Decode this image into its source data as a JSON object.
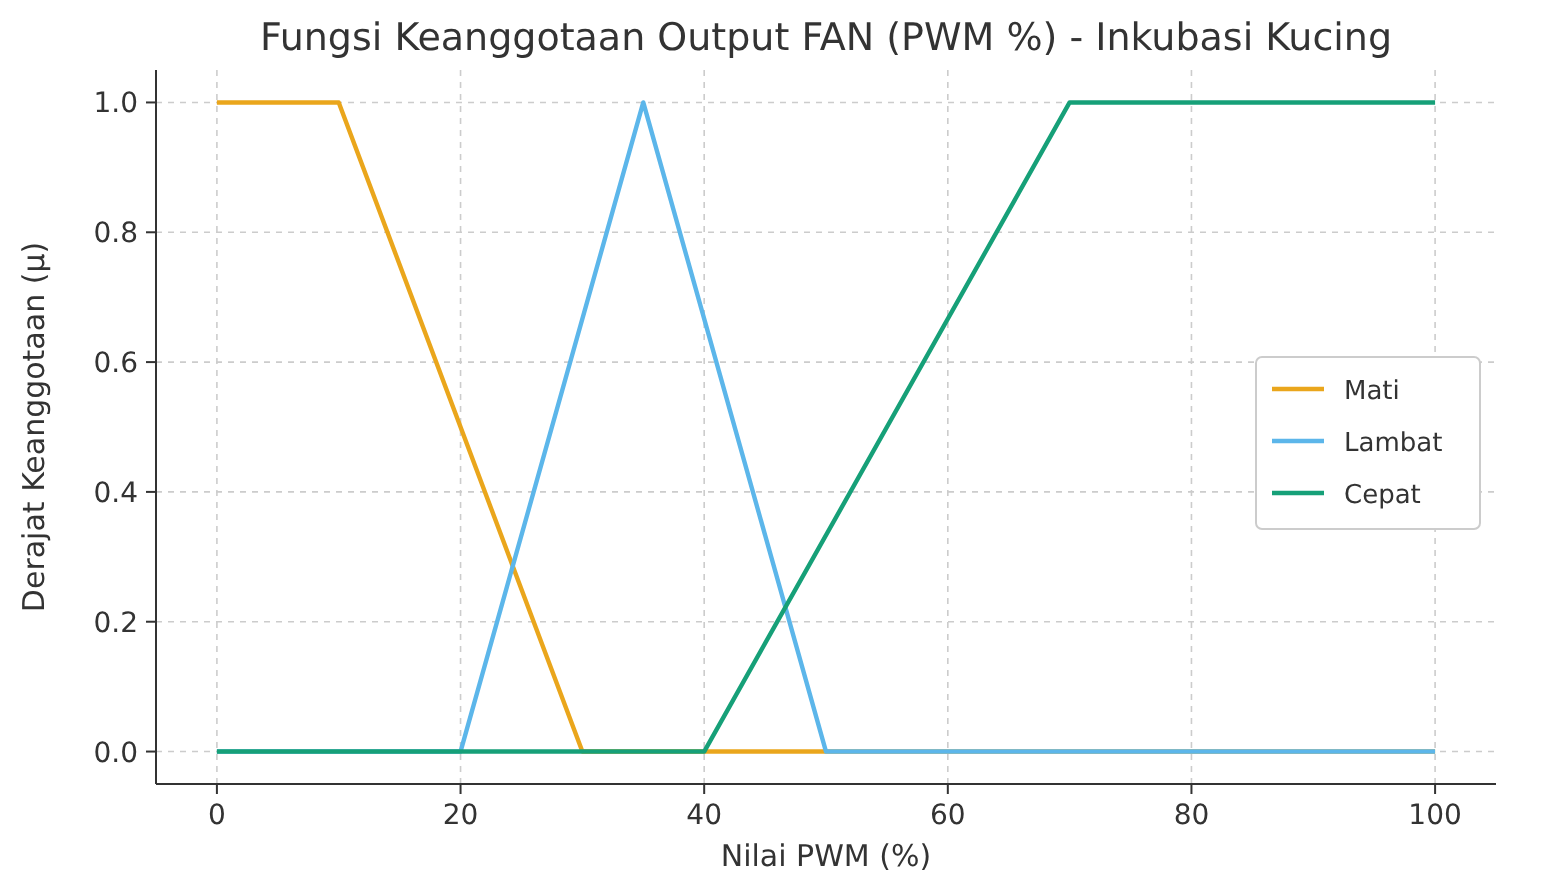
{
  "chart_data": {
    "type": "line",
    "title": "Fungsi Keanggotaan Output FAN (PWM %) - Inkubasi Kucing",
    "xlabel": "Nilai PWM (%)",
    "ylabel": "Derajat Keanggotaan (μ)",
    "series": [
      {
        "name": "Mati",
        "color": "#eaa61c",
        "x": [
          0,
          10,
          30,
          100
        ],
        "values": [
          1,
          1,
          0,
          0
        ]
      },
      {
        "name": "Lambat",
        "color": "#5cb6ea",
        "x": [
          0,
          20,
          35,
          50,
          100
        ],
        "values": [
          0,
          0,
          1,
          0,
          0
        ]
      },
      {
        "name": "Cepat",
        "color": "#16a078",
        "x": [
          0,
          40,
          70,
          100
        ],
        "values": [
          0,
          0,
          1,
          1
        ]
      }
    ],
    "xlim": [
      -5,
      105
    ],
    "xticks": [
      0,
      20,
      40,
      60,
      80,
      100
    ],
    "ylim": [
      -0.05,
      1.05
    ],
    "yticks": [
      {
        "value": 0,
        "label": "0.0"
      },
      {
        "value": 0.2,
        "label": "0.2"
      },
      {
        "value": 0.4,
        "label": "0.4"
      },
      {
        "value": 0.6,
        "label": "0.6"
      },
      {
        "value": 0.8,
        "label": "0.8"
      },
      {
        "value": 1,
        "label": "1.0"
      }
    ],
    "grid": true,
    "legend": "right",
    "line_style": "solid",
    "marker": "none"
  }
}
